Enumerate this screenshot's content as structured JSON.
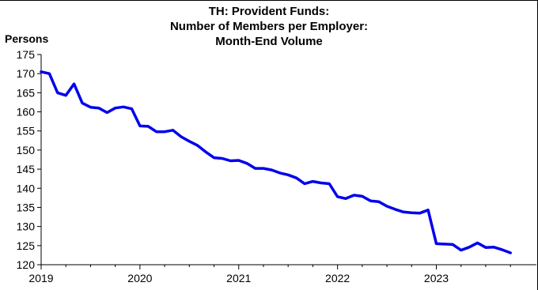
{
  "chart_data": {
    "type": "line",
    "title_lines": [
      "TH: Provident Funds:",
      "Number of Members per Employer:",
      "Month-End Volume"
    ],
    "ylabel": "Persons",
    "xlabel": "",
    "ylim": [
      120,
      175
    ],
    "yticks": [
      120,
      125,
      130,
      135,
      140,
      145,
      150,
      155,
      160,
      165,
      170,
      175
    ],
    "xticks": [
      {
        "year": 2019,
        "label": "2019"
      },
      {
        "year": 2020,
        "label": "2020"
      },
      {
        "year": 2021,
        "label": "2021"
      },
      {
        "year": 2022,
        "label": "2022"
      },
      {
        "year": 2023,
        "label": "2023"
      }
    ],
    "xlim": [
      "2019-01",
      "2023-12"
    ],
    "grid": false,
    "legend": "none",
    "series": [
      {
        "color": "#0000ee",
        "points": [
          [
            "2019-01",
            170.5
          ],
          [
            "2019-02",
            170.0
          ],
          [
            "2019-03",
            165.0
          ],
          [
            "2019-04",
            164.3
          ],
          [
            "2019-05",
            167.3
          ],
          [
            "2019-06",
            162.3
          ],
          [
            "2019-07",
            161.2
          ],
          [
            "2019-08",
            161.0
          ],
          [
            "2019-09",
            159.8
          ],
          [
            "2019-10",
            161.0
          ],
          [
            "2019-11",
            161.3
          ],
          [
            "2019-12",
            160.8
          ],
          [
            "2020-01",
            156.3
          ],
          [
            "2020-02",
            156.2
          ],
          [
            "2020-03",
            154.8
          ],
          [
            "2020-04",
            154.8
          ],
          [
            "2020-05",
            155.2
          ],
          [
            "2020-06",
            153.5
          ],
          [
            "2020-07",
            152.3
          ],
          [
            "2020-08",
            151.2
          ],
          [
            "2020-09",
            149.5
          ],
          [
            "2020-10",
            148.0
          ],
          [
            "2020-11",
            147.8
          ],
          [
            "2020-12",
            147.2
          ],
          [
            "2021-01",
            147.3
          ],
          [
            "2021-02",
            146.5
          ],
          [
            "2021-03",
            145.2
          ],
          [
            "2021-04",
            145.2
          ],
          [
            "2021-05",
            144.8
          ],
          [
            "2021-06",
            144.0
          ],
          [
            "2021-07",
            143.5
          ],
          [
            "2021-08",
            142.7
          ],
          [
            "2021-09",
            141.2
          ],
          [
            "2021-10",
            141.8
          ],
          [
            "2021-11",
            141.4
          ],
          [
            "2021-12",
            141.2
          ],
          [
            "2022-01",
            137.8
          ],
          [
            "2022-02",
            137.3
          ],
          [
            "2022-03",
            138.2
          ],
          [
            "2022-04",
            137.9
          ],
          [
            "2022-05",
            136.7
          ],
          [
            "2022-06",
            136.5
          ],
          [
            "2022-07",
            135.3
          ],
          [
            "2022-08",
            134.5
          ],
          [
            "2022-09",
            133.8
          ],
          [
            "2022-10",
            133.6
          ],
          [
            "2022-11",
            133.5
          ],
          [
            "2022-12",
            134.3
          ],
          [
            "2023-01",
            125.5
          ],
          [
            "2023-02",
            125.4
          ],
          [
            "2023-03",
            125.3
          ],
          [
            "2023-04",
            123.8
          ],
          [
            "2023-05",
            124.6
          ],
          [
            "2023-06",
            125.7
          ],
          [
            "2023-07",
            124.5
          ],
          [
            "2023-08",
            124.6
          ],
          [
            "2023-09",
            123.9
          ],
          [
            "2023-10",
            123.1
          ]
        ]
      }
    ]
  }
}
